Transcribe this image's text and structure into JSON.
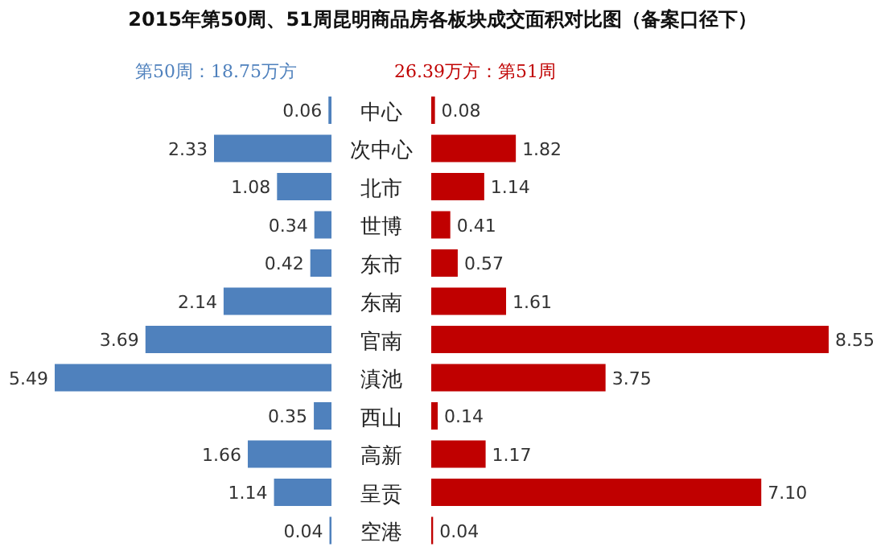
{
  "chart_data": [
    {
      "type": "bar",
      "orientation": "horizontal",
      "title": "2015年第50周、51周昆明商品房各板块成交面积对比图（备案口径下）",
      "categories": [
        "中心",
        "次中心",
        "北市",
        "世博",
        "东市",
        "东南",
        "官南",
        "滇池",
        "西山",
        "高新",
        "呈贡",
        "空港"
      ],
      "tick_labels": "y",
      "series": [
        {
          "name": "第50周：18.75万方",
          "color": "#4f81bd",
          "values": [
            0.06,
            2.33,
            1.08,
            0.34,
            0.42,
            2.14,
            3.69,
            5.49,
            0.35,
            1.66,
            1.14,
            0.04
          ]
        }
      ],
      "data_labels": true,
      "legend": "top"
    },
    {
      "type": "bar",
      "orientation": "horizontal",
      "tick_labels": false,
      "series": [
        {
          "name": "26.39万方：第51周",
          "color": "#c00000",
          "values": [
            0.08,
            1.82,
            1.14,
            0.41,
            0.57,
            1.61,
            8.55,
            3.75,
            0.14,
            1.17,
            7.1,
            0.04
          ],
          "value_labels": [
            "0.08",
            "1.82",
            "1.14",
            "0.41",
            "0.57",
            "1.61",
            "8.55",
            "3.75",
            "0.14",
            "1.17",
            "7.10",
            "0.04"
          ]
        }
      ],
      "legend": "top"
    }
  ]
}
